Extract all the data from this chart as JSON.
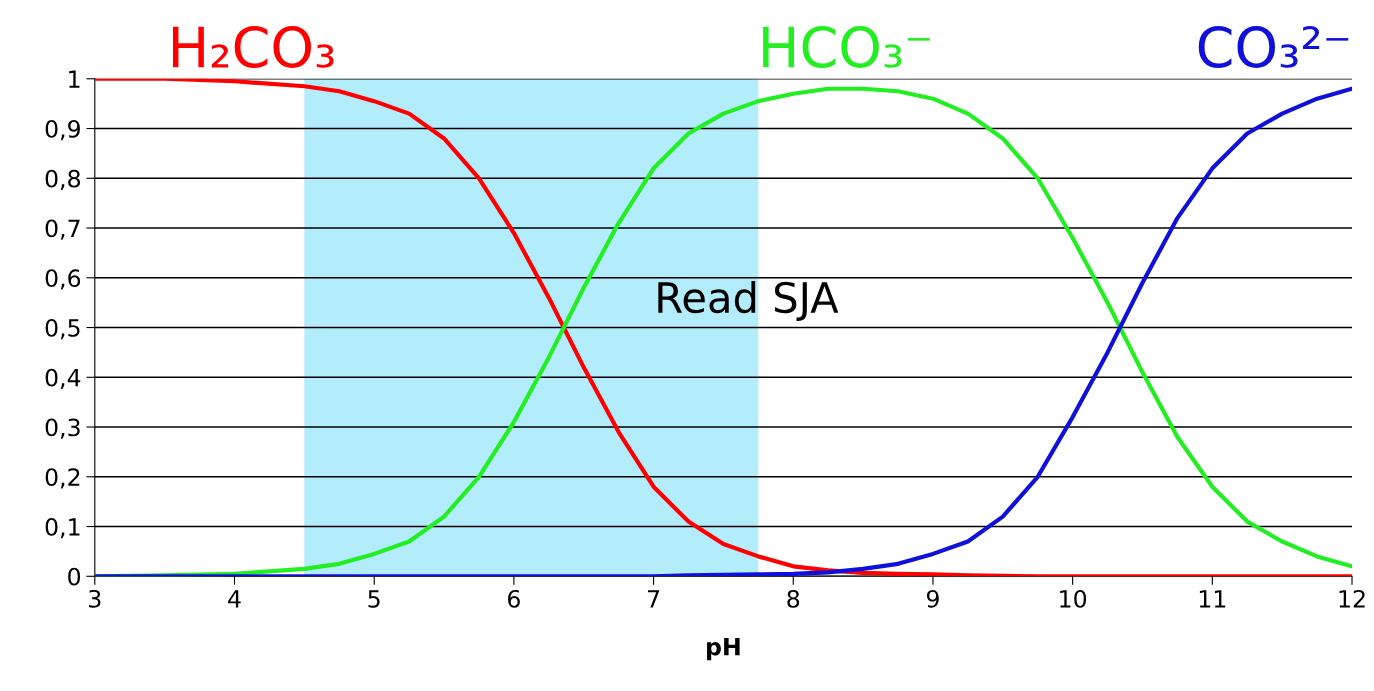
{
  "chart_data": {
    "type": "line",
    "xlabel": "pH",
    "x": [
      3,
      3.5,
      4,
      4.5,
      4.75,
      5,
      5.25,
      5.5,
      5.75,
      6,
      6.25,
      6.5,
      6.75,
      7,
      7.25,
      7.5,
      7.75,
      8,
      8.25,
      8.5,
      8.75,
      9,
      9.25,
      9.5,
      9.75,
      10,
      10.25,
      10.5,
      10.75,
      11,
      11.25,
      11.5,
      11.75,
      12
    ],
    "series": [
      {
        "name": "H₂CO₃",
        "color": "#ff0000",
        "values": [
          1,
          1,
          0.995,
          0.985,
          0.975,
          0.955,
          0.93,
          0.88,
          0.8,
          0.69,
          0.56,
          0.42,
          0.29,
          0.18,
          0.11,
          0.065,
          0.04,
          0.02,
          0.012,
          0.007,
          0.005,
          0.004,
          0.002,
          0.001,
          0,
          0,
          0,
          0,
          0,
          0,
          0,
          0,
          0,
          0
        ]
      },
      {
        "name": "HCO₃⁻",
        "color": "#22ee22",
        "values": [
          0,
          0.002,
          0.005,
          0.015,
          0.025,
          0.045,
          0.07,
          0.12,
          0.2,
          0.31,
          0.44,
          0.58,
          0.71,
          0.82,
          0.89,
          0.93,
          0.955,
          0.97,
          0.98,
          0.98,
          0.975,
          0.96,
          0.93,
          0.88,
          0.8,
          0.68,
          0.55,
          0.41,
          0.28,
          0.18,
          0.11,
          0.07,
          0.04,
          0.02
        ]
      },
      {
        "name": "CO₃²⁻",
        "color": "#1010dd",
        "values": [
          0,
          0,
          0,
          0,
          0,
          0,
          0,
          0,
          0,
          0,
          0,
          0,
          0,
          0,
          0.002,
          0.003,
          0.004,
          0.005,
          0.008,
          0.015,
          0.025,
          0.045,
          0.07,
          0.12,
          0.2,
          0.32,
          0.45,
          0.59,
          0.72,
          0.82,
          0.89,
          0.93,
          0.96,
          0.98
        ]
      }
    ],
    "xlim": [
      3,
      12
    ],
    "xticks": [
      3,
      4,
      5,
      6,
      7,
      8,
      9,
      10,
      11,
      12
    ],
    "ylim": [
      0,
      1
    ],
    "yticks": [
      0,
      {
        "value": 0.1,
        "label": "0,1"
      },
      {
        "value": 0.2,
        "label": "0,2"
      },
      {
        "value": 0.3,
        "label": "0,3"
      },
      {
        "value": 0.4,
        "label": "0,4"
      },
      {
        "value": 0.5,
        "label": "0,5"
      },
      {
        "value": 0.6,
        "label": "0,6"
      },
      {
        "value": 0.7,
        "label": "0,7"
      },
      {
        "value": 0.8,
        "label": "0,8"
      },
      {
        "value": 0.9,
        "label": "0,9"
      },
      1
    ],
    "bands": [
      {
        "axis": "x",
        "from": 4.5,
        "to": 7.75,
        "color": "#b3ecfb"
      }
    ],
    "annotations": [
      "Read SJA"
    ],
    "grid": "y",
    "legend": false,
    "marker": "none",
    "line_style": "solid"
  }
}
